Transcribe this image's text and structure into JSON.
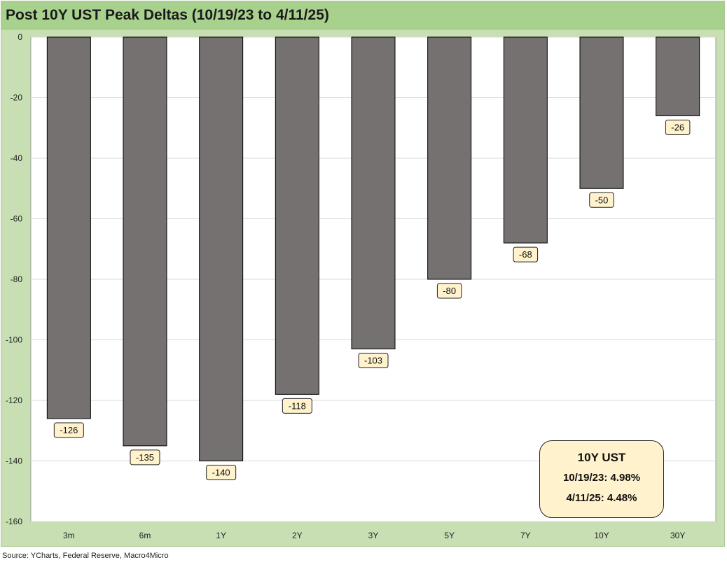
{
  "chart_data": {
    "type": "bar",
    "title": "Post 10Y UST Peak Deltas (10/19/23 to 4/11/25)",
    "categories": [
      "3m",
      "6m",
      "1Y",
      "2Y",
      "3Y",
      "5Y",
      "7Y",
      "10Y",
      "30Y"
    ],
    "values": [
      -126,
      -135,
      -140,
      -118,
      -103,
      -80,
      -68,
      -50,
      -26
    ],
    "data_labels": [
      "-126",
      "-135",
      "-140",
      "-118",
      "-103",
      "-80",
      "-68",
      "-50",
      "-26"
    ],
    "ylim": [
      -160,
      0
    ],
    "yticks": [
      0,
      -20,
      -40,
      -60,
      -80,
      -100,
      -120,
      -140,
      -160
    ],
    "ytick_labels": [
      "0",
      "-20",
      "-40",
      "-60",
      "-80",
      "-100",
      "-120",
      "-140",
      "-160"
    ],
    "xlabel": "",
    "ylabel": "",
    "grid": true,
    "bar_color": "#767171",
    "label_box_color": "#fff2cc",
    "plot_background": "#ffffff",
    "frame_color": "#c8dfb4",
    "title_bar_color": "#a9d18e"
  },
  "annotation": {
    "title": "10Y UST",
    "line1": "10/19/23: 4.98%",
    "line2": "4/11/25: 4.48%"
  },
  "source": "Source: YCharts, Federal Reserve, Macro4Micro"
}
